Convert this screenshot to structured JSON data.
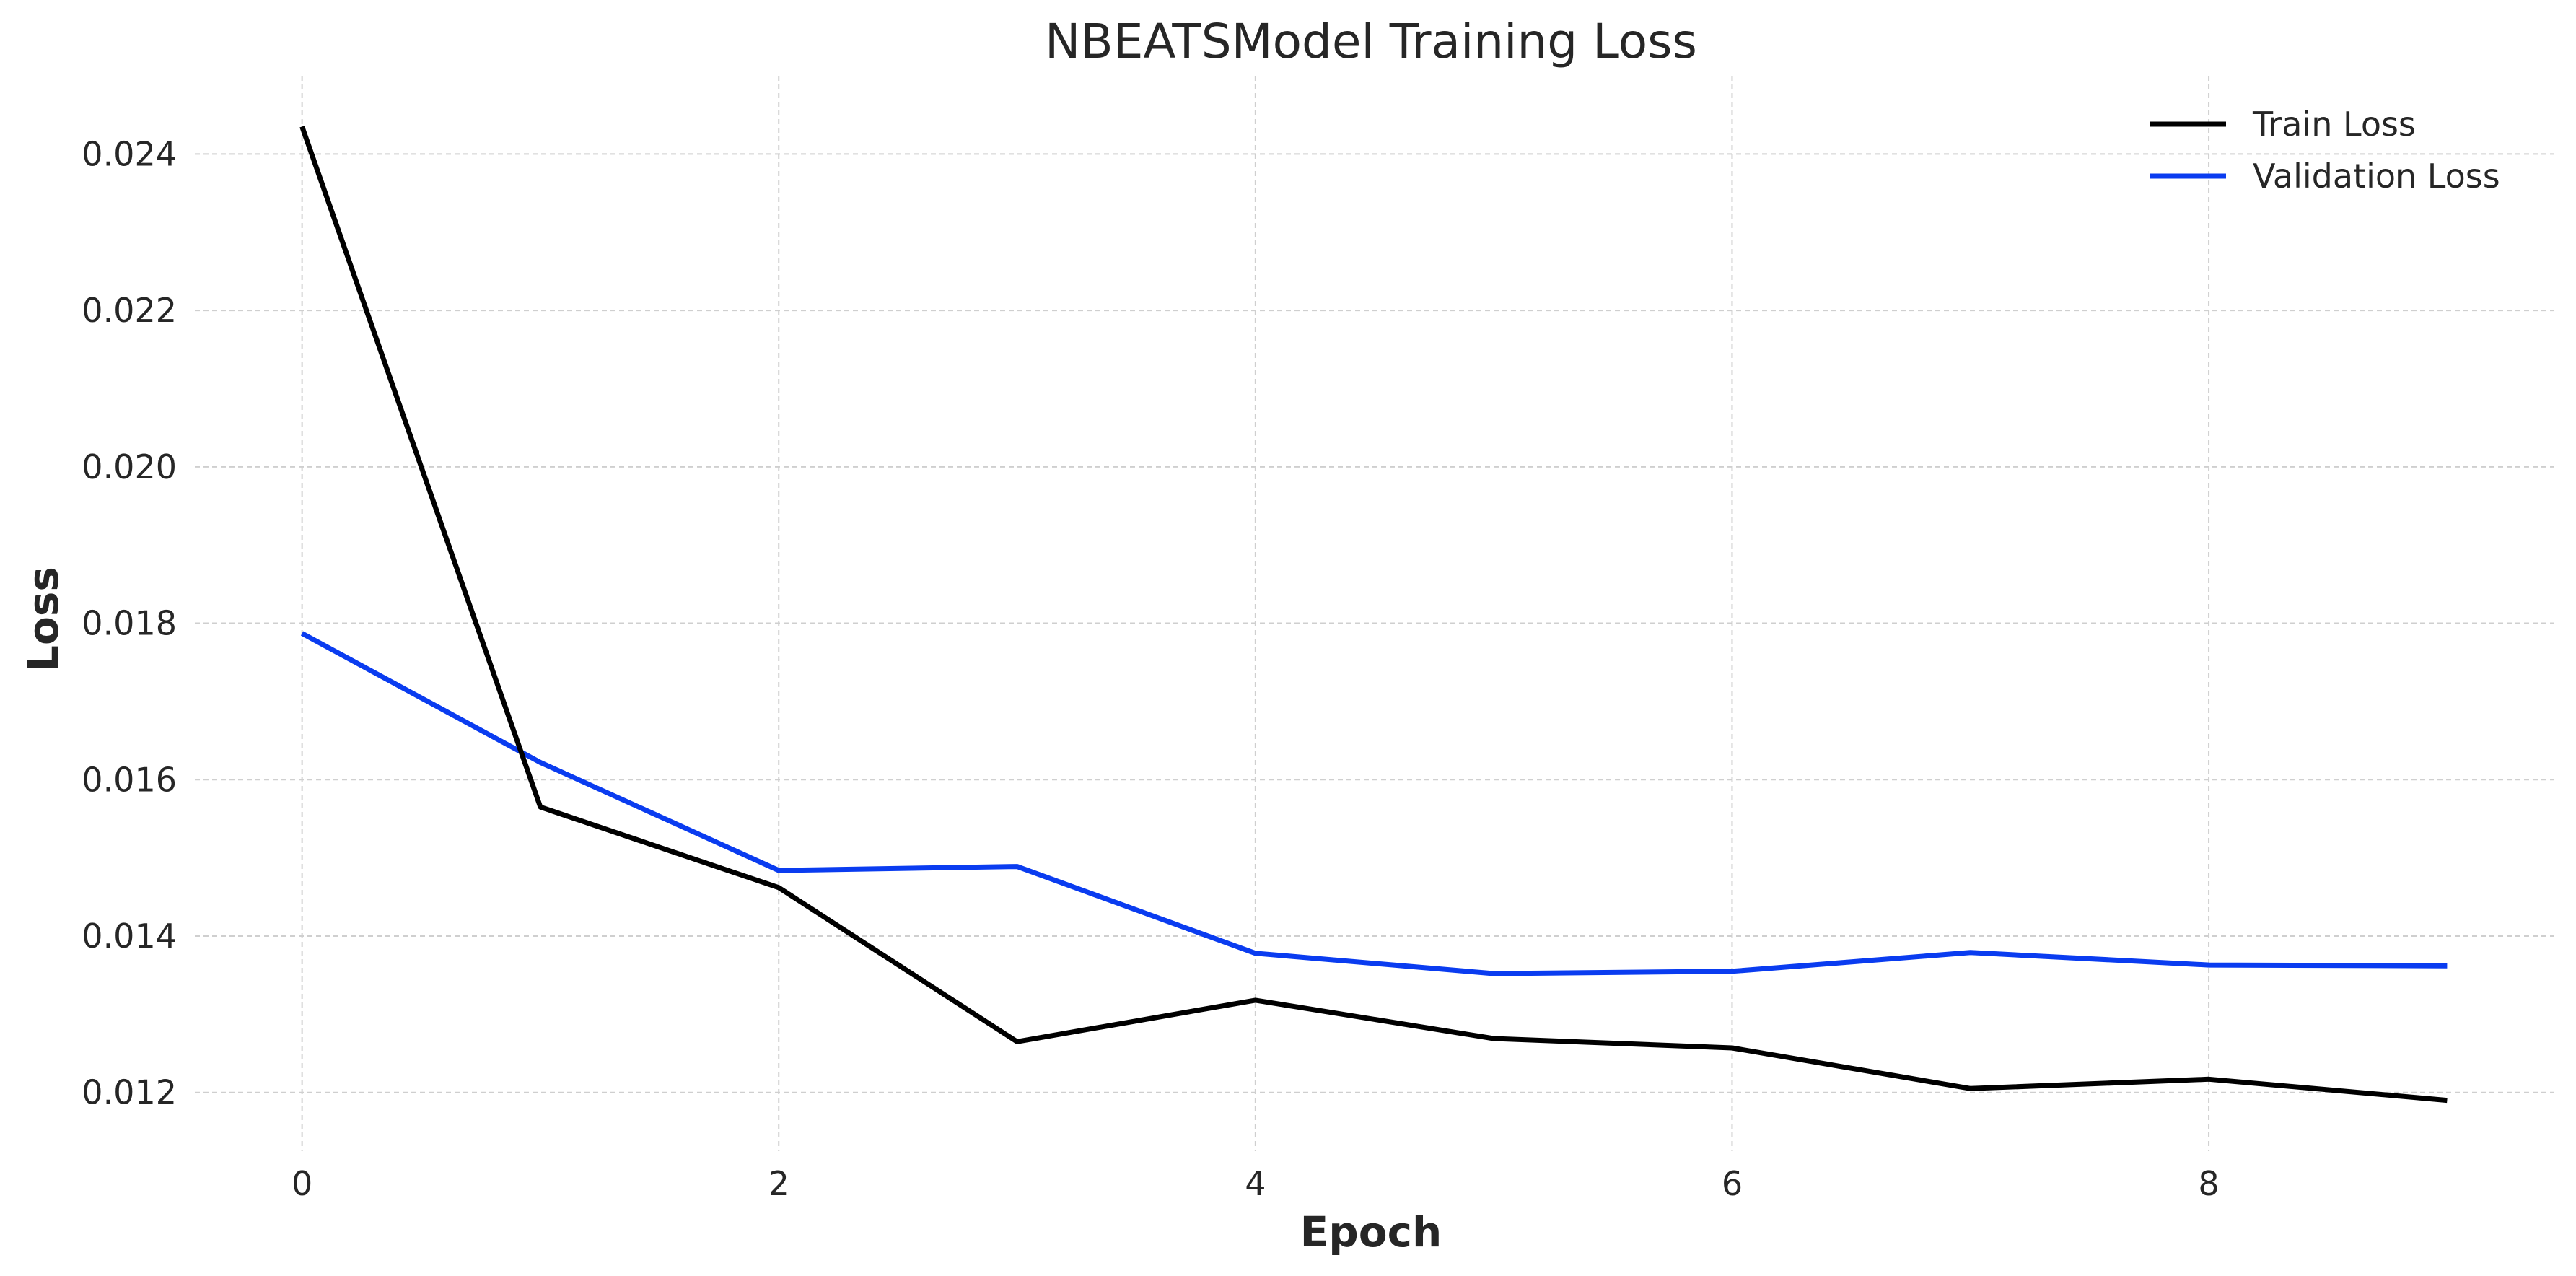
{
  "chart_data": {
    "type": "line",
    "title": "NBEATSModel Training Loss",
    "xlabel": "Epoch",
    "ylabel": "Loss",
    "xlim": [
      -0.45,
      9.45
    ],
    "ylim": [
      0.01125,
      0.025
    ],
    "x_ticks": [
      0,
      2,
      4,
      6,
      8
    ],
    "y_ticks": [
      0.012,
      0.014,
      0.016,
      0.018,
      0.02,
      0.022,
      0.024
    ],
    "y_tick_labels": [
      "0.012",
      "0.014",
      "0.016",
      "0.018",
      "0.020",
      "0.022",
      "0.024"
    ],
    "x": [
      0,
      1,
      2,
      3,
      4,
      5,
      6,
      7,
      8,
      9
    ],
    "grid": true,
    "legend_position": "top-right",
    "series": [
      {
        "name": "Train Loss",
        "color": "#000000",
        "values": [
          0.02435,
          0.01565,
          0.01462,
          0.01265,
          0.01318,
          0.01269,
          0.01257,
          0.01205,
          0.01217,
          0.0119
        ]
      },
      {
        "name": "Validation Loss",
        "color": "#0a3cf0",
        "values": [
          0.01787,
          0.01622,
          0.01484,
          0.01489,
          0.01378,
          0.01352,
          0.01355,
          0.01379,
          0.01363,
          0.01362
        ]
      }
    ]
  }
}
